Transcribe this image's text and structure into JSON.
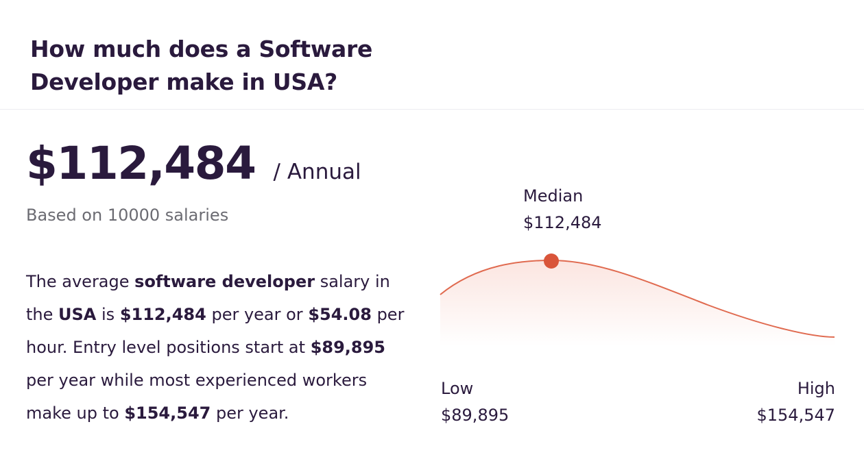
{
  "header": {
    "title": "How much does a Software Developer make in USA?"
  },
  "salary": {
    "amount": "$112,484",
    "period": "/ Annual",
    "based_on": "Based on 10000 salaries"
  },
  "summary": {
    "t1": "The average ",
    "b1": "software developer",
    "t2": " salary in the ",
    "b2": "USA",
    "t3": " is ",
    "b3": "$112,484",
    "t4": " per year or ",
    "b4": "$54.08",
    "t5": " per hour. Entry level positions start at ",
    "b5": "$89,895",
    "t6": " per year while most experienced workers make up to ",
    "b6": "$154,547",
    "t7": " per year."
  },
  "chart_data": {
    "type": "area",
    "median": {
      "label": "Median",
      "value": "$112,484"
    },
    "low": {
      "label": "Low",
      "value": "$89,895"
    },
    "high": {
      "label": "High",
      "value": "$154,547"
    },
    "colors": {
      "line": "#e06a4f",
      "marker": "#d9553a",
      "fill": "#fbe4df"
    }
  }
}
